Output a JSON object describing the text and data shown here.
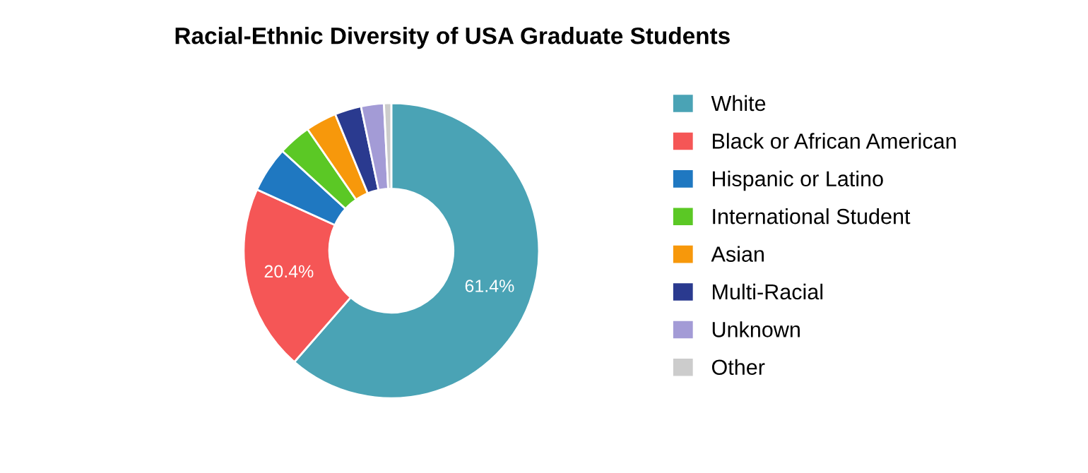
{
  "chart_data": {
    "type": "donut",
    "title": "Racial-Ethnic Diversity of USA Graduate Students",
    "categories": [
      "White",
      "Black or African American",
      "Hispanic or Latino",
      "International Student",
      "Asian",
      "Multi-Racial",
      "Unknown",
      "Other"
    ],
    "values": [
      61.4,
      20.4,
      5.0,
      3.6,
      3.4,
      2.9,
      2.5,
      0.8
    ],
    "colors": [
      "#4aa3b5",
      "#f55656",
      "#1f78c1",
      "#5bc825",
      "#f7980b",
      "#2a3a8f",
      "#a39bd6",
      "#cccccc"
    ],
    "value_labels": [
      "61.4%",
      "20.4%",
      null,
      null,
      null,
      null,
      null,
      null
    ],
    "legend": "right"
  }
}
